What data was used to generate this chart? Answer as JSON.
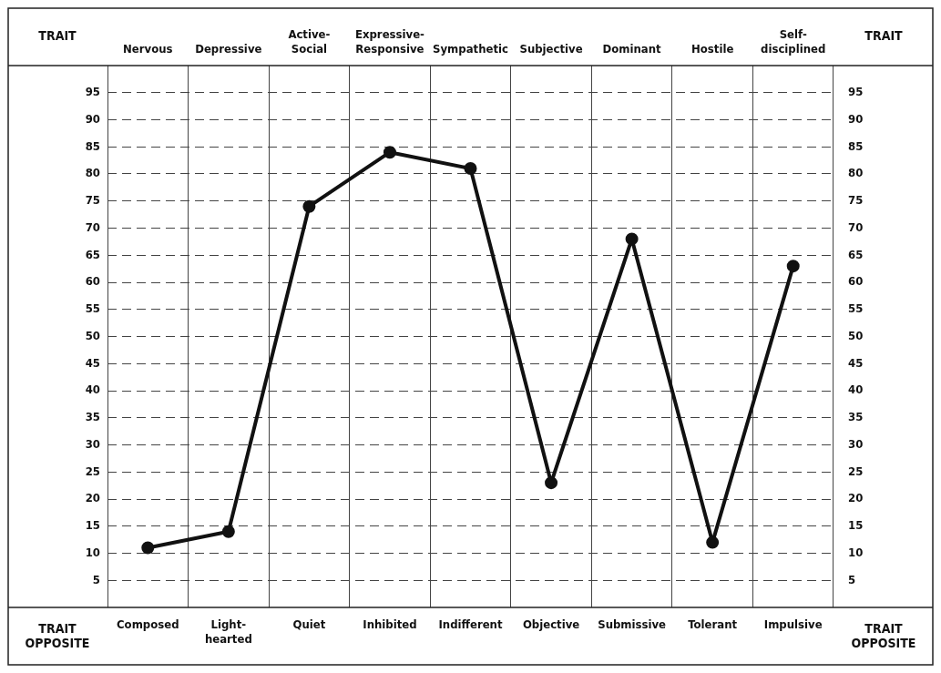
{
  "chart_data": {
    "type": "line",
    "categories": [
      "Composed",
      "Light-hearted",
      "Quiet",
      "Inhibited",
      "Indifferent",
      "Objective",
      "Submissive",
      "Tolerant",
      "Impulsive"
    ],
    "annotations": [
      "Nervous",
      "Depressive",
      "Active-Social",
      "Expressive-Responsive",
      "Sympathetic",
      "Subjective",
      "Dominant",
      "Hostile",
      "Self-disciplined"
    ],
    "xlabel": "TRAIT OPPOSITE",
    "x2label": "TRAIT",
    "series": [
      {
        "color": "#111111",
        "values": [
          11,
          14,
          74,
          84,
          81,
          23,
          68,
          12,
          63
        ]
      }
    ],
    "ylim": [
      0,
      100
    ],
    "yticks": [
      5,
      10,
      15,
      20,
      25,
      30,
      35,
      40,
      45,
      50,
      55,
      60,
      65,
      70,
      75,
      80,
      85,
      90,
      95
    ],
    "y2lim": [
      0,
      100
    ],
    "y2ticks": [
      5,
      10,
      15,
      20,
      25,
      30,
      35,
      40,
      45,
      50,
      55,
      60,
      65,
      70,
      75,
      80,
      85,
      90,
      95
    ],
    "grid": true,
    "line_style": "solid",
    "marker": "circle",
    "legend": false
  }
}
